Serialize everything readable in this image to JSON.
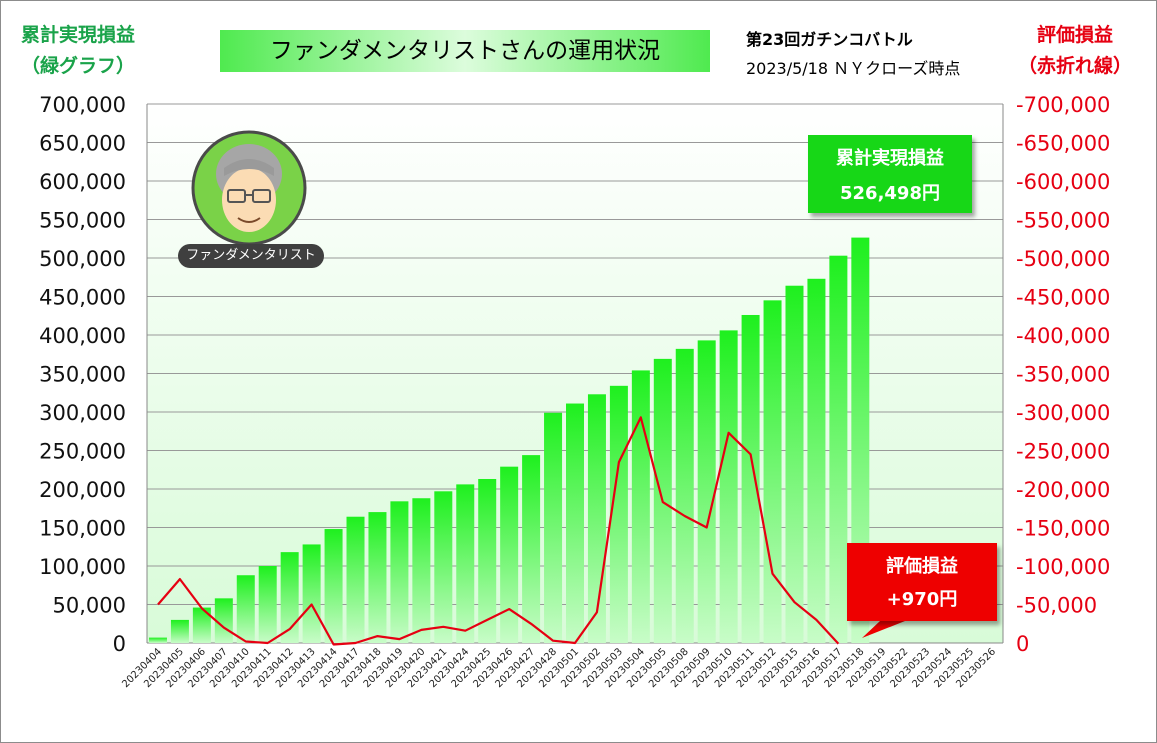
{
  "header": {
    "left_axis_title_line1": "累計実現損益",
    "left_axis_title_line2": "（緑グラフ）",
    "right_axis_title_line1": "評価損益",
    "right_axis_title_line2": "（赤折れ線）",
    "chart_title": "ファンダメンタリストさんの運用状況",
    "battle_name": "第23回ガチンコバトル",
    "as_of": "2023/5/18 ＮＹクローズ時点"
  },
  "avatar": {
    "label": "ファンダメンタリスト",
    "icon": "avatar-portrait-icon"
  },
  "callouts": {
    "realized_label": "累計実現損益",
    "realized_value": "526,498円",
    "unrealized_label": "評価損益",
    "unrealized_value": "+970円"
  },
  "colors": {
    "bar_top": "#1ef01e",
    "bar_bottom": "#c8fcc8",
    "line": "#e60012",
    "left_axis_title": "#1aa34a",
    "right_axis_title": "#e60012"
  },
  "chart_data": {
    "type": "bar",
    "categories": [
      "20230404",
      "20230405",
      "20230406",
      "20230407",
      "20230410",
      "20230411",
      "20230412",
      "20230413",
      "20230414",
      "20230417",
      "20230418",
      "20230419",
      "20230420",
      "20230421",
      "20230424",
      "20230425",
      "20230426",
      "20230427",
      "20230428",
      "20230501",
      "20230502",
      "20230503",
      "20230504",
      "20230505",
      "20230508",
      "20230509",
      "20230510",
      "20230511",
      "20230512",
      "20230515",
      "20230516",
      "20230517",
      "20230518",
      "20230519",
      "20230522",
      "20230523",
      "20230524",
      "20230525",
      "20230526"
    ],
    "series": [
      {
        "type": "bar",
        "axis": "left",
        "values": [
          7000,
          30000,
          46000,
          58000,
          88000,
          100000,
          118000,
          128000,
          148000,
          164000,
          170000,
          184000,
          188000,
          197000,
          206000,
          213000,
          229000,
          244000,
          299000,
          311000,
          323000,
          334000,
          354000,
          369000,
          382000,
          393000,
          406000,
          426000,
          445000,
          464000,
          473000,
          503000,
          526498,
          null,
          null,
          null,
          null,
          null,
          null
        ]
      },
      {
        "type": "line",
        "axis": "right",
        "values": [
          -50000,
          -83000,
          -45000,
          -20000,
          -2000,
          0,
          -18000,
          -50000,
          2000,
          0,
          -9000,
          -5000,
          -17000,
          -21000,
          -16000,
          -30000,
          -44000,
          -25000,
          -3000,
          0,
          -40000,
          -235000,
          -293000,
          -183000,
          -165000,
          -150000,
          -273000,
          -245000,
          -90000,
          -53000,
          -30000,
          970,
          null,
          null,
          null,
          null,
          null,
          null,
          null
        ]
      }
    ],
    "yleft": {
      "ylim": [
        0,
        700000
      ],
      "ticks": [
        "0",
        "50,000",
        "100,000",
        "150,000",
        "200,000",
        "250,000",
        "300,000",
        "350,000",
        "400,000",
        "450,000",
        "500,000",
        "550,000",
        "600,000",
        "650,000",
        "700,000"
      ]
    },
    "yright": {
      "ylim": [
        0,
        -700000
      ],
      "ticks": [
        "0",
        "-50,000",
        "-100,000",
        "-150,000",
        "-200,000",
        "-250,000",
        "-300,000",
        "-350,000",
        "-400,000",
        "-450,000",
        "-500,000",
        "-550,000",
        "-600,000",
        "-650,000",
        "-700,000"
      ]
    },
    "grid": true
  }
}
